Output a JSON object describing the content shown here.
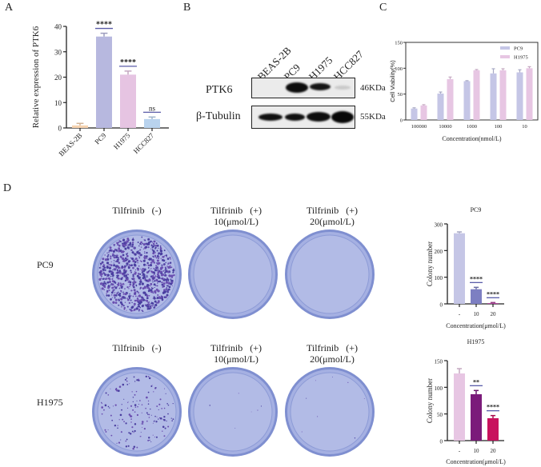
{
  "panels": {
    "A": "A",
    "B": "B",
    "C": "C",
    "D": "D"
  },
  "chart_data": [
    {
      "id": "A",
      "type": "bar",
      "title": "",
      "xlabel": "",
      "ylabel": "Relative expression of PTK6",
      "categories": [
        "BEAS-2B",
        "PC9",
        "H1975",
        "HCC827"
      ],
      "values": [
        1.0,
        36.0,
        21.0,
        3.5
      ],
      "errors": [
        0.8,
        1.3,
        1.4,
        0.8
      ],
      "colors": [
        "#f6d3b0",
        "#b7b8df",
        "#e6c4e2",
        "#b9d3ee"
      ],
      "significance": [
        "",
        "****",
        "****",
        "ns"
      ],
      "ylim": [
        0,
        40
      ],
      "yticks": [
        0,
        10,
        20,
        30,
        40
      ],
      "grid": false
    },
    {
      "id": "C",
      "type": "bar",
      "title": "",
      "xlabel": "Concentration(nmol/L)",
      "ylabel": "Cell Viability(%)",
      "categories": [
        "100000",
        "10000",
        "1000",
        "100",
        "10"
      ],
      "series": [
        {
          "name": "PC9",
          "color": "#c5c6e6",
          "values": [
            22,
            51,
            75,
            90,
            92
          ],
          "errors": [
            1.5,
            3,
            1,
            9,
            5
          ]
        },
        {
          "name": "H1975",
          "color": "#e7c6e3",
          "values": [
            28,
            79,
            96,
            96,
            100
          ],
          "errors": [
            1.5,
            4,
            1.5,
            3,
            3
          ]
        }
      ],
      "ylim": [
        0,
        150
      ],
      "yticks": [
        0,
        50,
        100,
        150
      ],
      "legend_position": "top-right",
      "grid": false
    },
    {
      "id": "D-PC9",
      "type": "bar",
      "title": "PC9",
      "xlabel": "Concentration(μmol/L)",
      "ylabel": "Colony number",
      "categories": [
        "-",
        "10",
        "20"
      ],
      "values": [
        265,
        55,
        3
      ],
      "errors": [
        5,
        7,
        2
      ],
      "colors": [
        "#c5c6e6",
        "#7d7fc2",
        "#b04a9e"
      ],
      "significance": [
        "",
        "****",
        "****"
      ],
      "ylim": [
        0,
        300
      ],
      "yticks": [
        0,
        100,
        200,
        300
      ],
      "grid": false
    },
    {
      "id": "D-H1975",
      "type": "bar",
      "title": "H1975",
      "xlabel": "Concentration(μmol/L)",
      "ylabel": "Colony number",
      "categories": [
        "-",
        "10",
        "20"
      ],
      "values": [
        126,
        87,
        42
      ],
      "errors": [
        9,
        7,
        5
      ],
      "colors": [
        "#e7c6e3",
        "#7b1b7a",
        "#c8125e"
      ],
      "significance": [
        "",
        "**",
        "****"
      ],
      "ylim": [
        0,
        150
      ],
      "yticks": [
        0,
        50,
        100,
        150
      ],
      "grid": false
    }
  ],
  "western_blot": {
    "lanes": [
      "BEAS-2B",
      "PC9",
      "H1975",
      "HCC827"
    ],
    "rows": [
      {
        "protein": "PTK6",
        "size": "46KDa"
      },
      {
        "protein": "β-Tubulin",
        "size": "55KDa"
      }
    ]
  },
  "colony_assay": {
    "conditions": [
      {
        "line1": "Tilfrinib   (-)",
        "line2": ""
      },
      {
        "line1": "Tilfrinib   (+)",
        "line2": "10(μmol/L)"
      },
      {
        "line1": "Tilfrinib   (+)",
        "line2": "20(μmol/L)"
      }
    ],
    "cell_lines": [
      "PC9",
      "H1975"
    ]
  }
}
